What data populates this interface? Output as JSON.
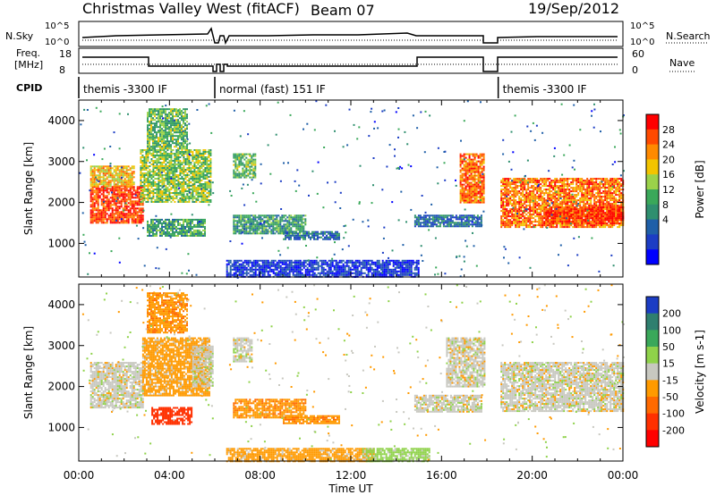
{
  "header": {
    "station": "Christmas Valley West (fitACF)",
    "beam": "Beam 07",
    "date": "19/Sep/2012"
  },
  "top_panels": {
    "nsky_label": "N.Sky",
    "nsearch_label": "N.Search",
    "nsky_ticks": [
      "10^5",
      "10^0"
    ],
    "nsearch_ticks": [
      "10^5",
      "10^0"
    ],
    "freq_label_1": "Freq.",
    "freq_label_2": "[MHz]",
    "freq_ticks": [
      "18",
      "8"
    ],
    "nave_label": "Nave",
    "nave_ticks": [
      "60",
      "0"
    ],
    "cpid_label": "CPID",
    "cpid_segments": [
      {
        "label": "themis -3300 IF",
        "start": 0.0,
        "end": 6.0
      },
      {
        "label": "normal (fast) 151 IF",
        "start": 6.0,
        "end": 18.0
      },
      {
        "label": "themis -3300 IF",
        "start": 18.5,
        "end": 24.0
      }
    ]
  },
  "chart_data": [
    {
      "type": "heatmap",
      "name": "power",
      "ylabel": "Slant Range [km]",
      "xlabel": "Time UT",
      "xlim": [
        0,
        24
      ],
      "ylim": [
        180,
        4500
      ],
      "yticks": [
        1000,
        2000,
        3000,
        4000
      ],
      "xticks": [
        "00:00",
        "04:00",
        "08:00",
        "12:00",
        "16:00",
        "20:00",
        "00:00"
      ],
      "colorbar": {
        "label": "Power [dB]",
        "ticks": [
          "28",
          "24",
          "20",
          "16",
          "12",
          "8",
          "4"
        ],
        "colors": [
          "#ff0000",
          "#ff4a00",
          "#ff8a00",
          "#f2c400",
          "#9bd24a",
          "#3aa85a",
          "#2f8f6f",
          "#1f5fa8",
          "#1c3dc4",
          "#0000ff"
        ]
      },
      "regions": [
        {
          "t0": 0.5,
          "t1": 2.8,
          "r0": 1500,
          "r1": 2400,
          "value": 28
        },
        {
          "t0": 0.5,
          "t1": 2.4,
          "r0": 2400,
          "r1": 2900,
          "value": 22
        },
        {
          "t0": 2.7,
          "t1": 5.8,
          "r0": 2000,
          "r1": 3300,
          "value": 18
        },
        {
          "t0": 3.0,
          "t1": 4.8,
          "r0": 3300,
          "r1": 4300,
          "value": 16
        },
        {
          "t0": 3.0,
          "t1": 5.6,
          "r0": 1200,
          "r1": 1600,
          "value": 14
        },
        {
          "t0": 6.8,
          "t1": 7.8,
          "r0": 2600,
          "r1": 3200,
          "value": 16
        },
        {
          "t0": 6.8,
          "t1": 10.0,
          "r0": 1250,
          "r1": 1700,
          "value": 14
        },
        {
          "t0": 9.0,
          "t1": 11.5,
          "r0": 1100,
          "r1": 1300,
          "value": 10
        },
        {
          "t0": 6.5,
          "t1": 15.0,
          "r0": 180,
          "r1": 600,
          "value": 6
        },
        {
          "t0": 14.8,
          "t1": 17.8,
          "r0": 1400,
          "r1": 1700,
          "value": 10
        },
        {
          "t0": 16.8,
          "t1": 17.9,
          "r0": 2000,
          "r1": 3200,
          "value": 26
        },
        {
          "t0": 18.6,
          "t1": 24.0,
          "r0": 1400,
          "r1": 2600,
          "value": 26
        },
        {
          "t0": 20.5,
          "t1": 24.0,
          "r0": 1500,
          "r1": 1900,
          "value": 29
        }
      ]
    },
    {
      "type": "heatmap",
      "name": "velocity",
      "ylabel": "Slant Range [km]",
      "xlabel": "Time UT",
      "xlim": [
        0,
        24
      ],
      "ylim": [
        180,
        4500
      ],
      "yticks": [
        1000,
        2000,
        3000,
        4000
      ],
      "xticks": [
        "00:00",
        "04:00",
        "08:00",
        "12:00",
        "16:00",
        "20:00",
        "00:00"
      ],
      "colorbar": {
        "label": "Velocity [m s-1]",
        "ticks": [
          "200",
          "100",
          "50",
          "15",
          "-15",
          "-50",
          "-100",
          "-200"
        ],
        "colors": [
          "#1c3dc4",
          "#2f7f6f",
          "#3aa85a",
          "#8fd24a",
          "#c8c8c0",
          "#ff9a00",
          "#ff6a00",
          "#ff3000",
          "#ff0000"
        ]
      },
      "regions": [
        {
          "t0": 0.5,
          "t1": 2.8,
          "r0": 1500,
          "r1": 2600,
          "value": 0
        },
        {
          "t0": 2.8,
          "t1": 5.8,
          "r0": 1800,
          "r1": 3200,
          "value": -30
        },
        {
          "t0": 3.0,
          "t1": 4.8,
          "r0": 3300,
          "r1": 4300,
          "value": -40
        },
        {
          "t0": 3.2,
          "t1": 5.0,
          "r0": 1100,
          "r1": 1500,
          "value": -120
        },
        {
          "t0": 5.0,
          "t1": 5.9,
          "r0": 2000,
          "r1": 3000,
          "value": 0
        },
        {
          "t0": 6.8,
          "t1": 7.6,
          "r0": 2600,
          "r1": 3200,
          "value": 0
        },
        {
          "t0": 6.8,
          "t1": 10.0,
          "r0": 1250,
          "r1": 1700,
          "value": -40
        },
        {
          "t0": 9.0,
          "t1": 11.5,
          "r0": 1100,
          "r1": 1300,
          "value": -40
        },
        {
          "t0": 6.5,
          "t1": 13.0,
          "r0": 180,
          "r1": 500,
          "value": -30
        },
        {
          "t0": 12.5,
          "t1": 15.5,
          "r0": 180,
          "r1": 500,
          "value": 30
        },
        {
          "t0": 14.8,
          "t1": 17.8,
          "r0": 1400,
          "r1": 1800,
          "value": 0
        },
        {
          "t0": 16.2,
          "t1": 17.9,
          "r0": 2000,
          "r1": 3200,
          "value": 0
        },
        {
          "t0": 18.6,
          "t1": 24.0,
          "r0": 1400,
          "r1": 2600,
          "value": 0
        }
      ]
    }
  ]
}
